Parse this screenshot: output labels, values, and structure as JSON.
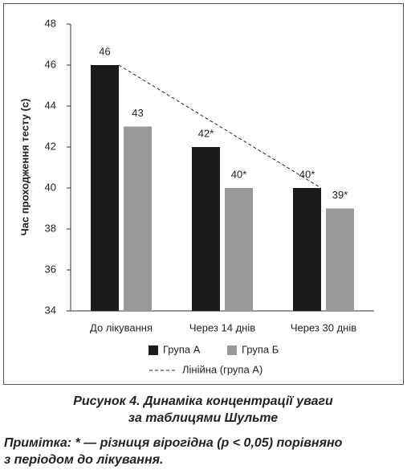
{
  "chart_data": {
    "type": "bar",
    "ylabel": "Час проходження тесту (с)",
    "categories": [
      "До лікування",
      "Через 14 днів",
      "Через 30 днів"
    ],
    "series": [
      {
        "name": "Група А",
        "color": "#1a1a1a",
        "values": [
          46,
          42,
          40
        ],
        "value_labels": [
          "46",
          "42*",
          "40*"
        ]
      },
      {
        "name": "Група Б",
        "color": "#999999",
        "values": [
          43,
          40,
          39
        ],
        "value_labels": [
          "43",
          "40*",
          "39*"
        ]
      }
    ],
    "trendline_label": "Лінійна (група А)",
    "ylim": [
      34,
      48
    ],
    "yticks": [
      34,
      36,
      38,
      40,
      42,
      44,
      46,
      48
    ],
    "grid": false
  },
  "caption": [
    "Рисунок 4. Динаміка концентрації уваги",
    "за таблицями Шульте"
  ],
  "note": [
    "Примітка: * — різниця вірогідна (p < 0,05) порівняно",
    "з періодом до лікування."
  ]
}
